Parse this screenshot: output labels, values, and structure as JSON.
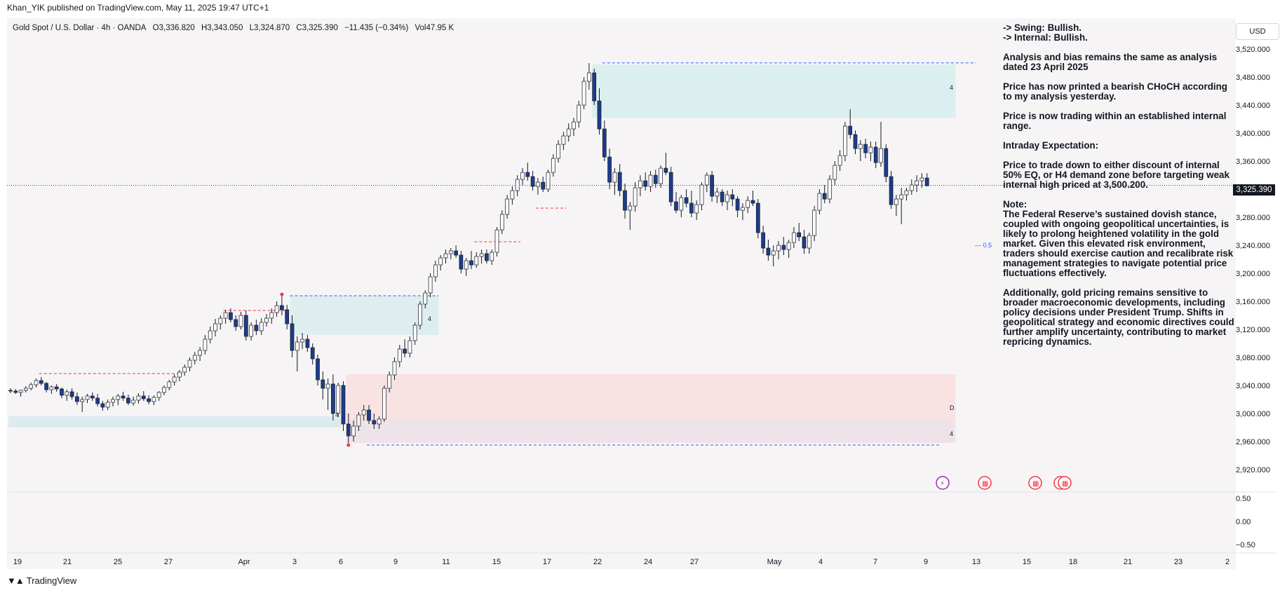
{
  "header": {
    "published": "Khan_YIK published on TradingView.com, May 11, 2025 19:47 UTC+1"
  },
  "ohlc": {
    "symbol": "Gold Spot / U.S. Dollar · 4h · OANDA",
    "open": "O3,336.820",
    "high": "H3,343.050",
    "low": "L3,324.870",
    "close": "C3,325.390",
    "change": "−11.435 (−0.34%)",
    "vol": "Vol47.95 K"
  },
  "currency_button": "USD",
  "last_price": "3,325.390",
  "notes": [
    "-> Swing:  Bullish.\n-> Internal:  Bullish.",
    "Analysis and bias remains the same as analysis dated 23 April 2025",
    "Price has now printed a bearish CHoCH according to my analysis yesterday.",
    "Price is now trading within an established internal range.",
    "Intraday Expectation:",
    "Price to trade down to either discount of internal 50% EQ, or H4 demand zone before targeting weak internal high priced at 3,500.200.",
    "Note:\nThe Federal Reserve’s sustained dovish stance, coupled with ongoing geopolitical uncertainties, is likely to prolong heightened volatility in the gold market. Given this elevated risk environment, traders should exercise caution and recalibrate risk management strategies to navigate potential price fluctuations effectively.",
    "Additionally, gold pricing remains sensitive to broader macroeconomic developments, including policy decisions under President Trump. Shifts in geopolitical strategy and economic directives could further amplify uncertainty, contributing to market repricing dynamics."
  ],
  "zone_labels": {
    "supply_tf": "4",
    "demand_daily": "D",
    "demand_tf": "4",
    "small_tf": "4",
    "eq_label": "— 0.5"
  },
  "footer": {
    "brand": "TradingView"
  },
  "colors": {
    "bull_body": "#ffffff",
    "bear_body": "#1e3c8c",
    "wick": "#131722",
    "supply_zone": "#d6ecee",
    "demand_zone": "#f9dede",
    "ltf_demand": "#d9e9ec"
  },
  "chart_data": {
    "type": "candlestick",
    "timeframe": "4h",
    "x_tick_labels": [
      "19",
      "21",
      "25",
      "27",
      "Apr",
      "3",
      "6",
      "9",
      "11",
      "15",
      "17",
      "22",
      "24",
      "27",
      "May",
      "4",
      "7",
      "9",
      "13",
      "15",
      "18",
      "21",
      "23",
      "2"
    ],
    "y_tick_labels": [
      "3,520.000",
      "3,480.000",
      "3,440.000",
      "3,400.000",
      "3,360.000",
      "3,320.000",
      "3,280.000",
      "3,240.000",
      "3,200.000",
      "3,160.000",
      "3,120.000",
      "3,080.000",
      "3,040.000",
      "3,000.000",
      "2,960.000",
      "2,920.000"
    ],
    "ylim": [
      2900,
      3535
    ],
    "osc_tick_labels": [
      "0.50",
      "0.00",
      "−0.50"
    ],
    "last_price": 3325.39,
    "zones": [
      {
        "name": "supply",
        "from_index": 114,
        "to_index": 185,
        "top": 3498,
        "bottom": 3422
      },
      {
        "name": "demand-daily",
        "from_index": 66,
        "to_index": 185,
        "top": 3056,
        "bottom": 2992
      },
      {
        "name": "demand-4h",
        "from_index": 66,
        "to_index": 185,
        "top": 2992,
        "bottom": 2958
      },
      {
        "name": "ltf-demand",
        "from_index": 0,
        "to_index": 65,
        "top": 2996,
        "bottom": 2980
      },
      {
        "name": "mid-zone",
        "from_index": 55,
        "to_index": 84,
        "top": 3168,
        "bottom": 3112
      }
    ],
    "levels": [
      {
        "price": 3500.2,
        "from_index": 116,
        "to_index": 189,
        "style": "dashed",
        "color": "#2962ff"
      },
      {
        "price": 2955,
        "from_index": 70,
        "to_index": 182,
        "style": "dashed",
        "color": "#2962ff"
      },
      {
        "price": 3168,
        "from_index": 55,
        "to_index": 84,
        "style": "dashed",
        "color": "#2962ff"
      },
      {
        "price": 3057,
        "from_index": 6,
        "to_index": 34,
        "style": "dashed",
        "color": "#f23645"
      },
      {
        "price": 3147,
        "from_index": 42,
        "to_index": 54,
        "style": "dashed",
        "color": "#f23645"
      },
      {
        "price": 3245,
        "from_index": 91,
        "to_index": 100,
        "style": "dashed",
        "color": "#f23645"
      },
      {
        "price": 3293,
        "from_index": 103,
        "to_index": 109,
        "style": "dashed",
        "color": "#f23645"
      }
    ],
    "candles": [
      [
        3033,
        3036,
        3029,
        3032
      ],
      [
        3032,
        3035,
        3028,
        3030
      ],
      [
        3030,
        3034,
        3024,
        3033
      ],
      [
        3033,
        3039,
        3030,
        3036
      ],
      [
        3036,
        3044,
        3033,
        3041
      ],
      [
        3041,
        3050,
        3037,
        3047
      ],
      [
        3047,
        3052,
        3040,
        3043
      ],
      [
        3043,
        3045,
        3030,
        3034
      ],
      [
        3034,
        3040,
        3028,
        3038
      ],
      [
        3038,
        3042,
        3031,
        3035
      ],
      [
        3035,
        3037,
        3022,
        3026
      ],
      [
        3026,
        3034,
        3018,
        3031
      ],
      [
        3031,
        3036,
        3020,
        3024
      ],
      [
        3024,
        3030,
        3012,
        3017
      ],
      [
        3017,
        3024,
        3002,
        3020
      ],
      [
        3020,
        3028,
        3015,
        3025
      ],
      [
        3025,
        3030,
        3018,
        3022
      ],
      [
        3022,
        3028,
        3010,
        3014
      ],
      [
        3014,
        3018,
        3004,
        3009
      ],
      [
        3009,
        3020,
        3005,
        3016
      ],
      [
        3016,
        3024,
        3010,
        3020
      ],
      [
        3020,
        3028,
        3012,
        3025
      ],
      [
        3025,
        3031,
        3018,
        3022
      ],
      [
        3022,
        3027,
        3012,
        3015
      ],
      [
        3015,
        3024,
        3011,
        3019
      ],
      [
        3019,
        3029,
        3014,
        3025
      ],
      [
        3025,
        3032,
        3018,
        3021
      ],
      [
        3021,
        3026,
        3013,
        3017
      ],
      [
        3017,
        3026,
        3012,
        3023
      ],
      [
        3023,
        3032,
        3018,
        3030
      ],
      [
        3030,
        3040,
        3026,
        3037
      ],
      [
        3037,
        3048,
        3033,
        3045
      ],
      [
        3045,
        3056,
        3040,
        3052
      ],
      [
        3052,
        3062,
        3046,
        3059
      ],
      [
        3059,
        3070,
        3054,
        3066
      ],
      [
        3066,
        3080,
        3060,
        3076
      ],
      [
        3076,
        3088,
        3070,
        3083
      ],
      [
        3083,
        3095,
        3075,
        3090
      ],
      [
        3090,
        3112,
        3084,
        3106
      ],
      [
        3106,
        3124,
        3100,
        3118
      ],
      [
        3118,
        3135,
        3110,
        3128
      ],
      [
        3128,
        3140,
        3120,
        3136
      ],
      [
        3136,
        3148,
        3128,
        3144
      ],
      [
        3144,
        3150,
        3130,
        3134
      ],
      [
        3134,
        3140,
        3118,
        3124
      ],
      [
        3124,
        3145,
        3120,
        3140
      ],
      [
        3140,
        3147,
        3104,
        3110
      ],
      [
        3110,
        3130,
        3104,
        3126
      ],
      [
        3126,
        3134,
        3112,
        3118
      ],
      [
        3118,
        3136,
        3112,
        3130
      ],
      [
        3130,
        3142,
        3124,
        3136
      ],
      [
        3136,
        3150,
        3128,
        3144
      ],
      [
        3144,
        3160,
        3138,
        3154
      ],
      [
        3154,
        3170,
        3140,
        3148
      ],
      [
        3148,
        3155,
        3120,
        3128
      ],
      [
        3128,
        3140,
        3080,
        3090
      ],
      [
        3090,
        3110,
        3060,
        3102
      ],
      [
        3102,
        3115,
        3092,
        3106
      ],
      [
        3106,
        3112,
        3088,
        3094
      ],
      [
        3094,
        3100,
        3070,
        3078
      ],
      [
        3078,
        3084,
        3040,
        3048
      ],
      [
        3048,
        3060,
        3020,
        3036
      ],
      [
        3036,
        3050,
        3005,
        3042
      ],
      [
        3042,
        3056,
        2990,
        3000
      ],
      [
        3000,
        3044,
        2995,
        3040
      ],
      [
        3040,
        3046,
        2975,
        2985
      ],
      [
        2985,
        3000,
        2958,
        2968
      ],
      [
        2968,
        2990,
        2960,
        2982
      ],
      [
        2982,
        3002,
        2975,
        2998
      ],
      [
        2998,
        3012,
        2990,
        3005
      ],
      [
        3005,
        3012,
        2985,
        2990
      ],
      [
        2990,
        3000,
        2978,
        2985
      ],
      [
        2985,
        2996,
        2978,
        2992
      ],
      [
        2992,
        3040,
        2988,
        3036
      ],
      [
        3036,
        3060,
        3030,
        3055
      ],
      [
        3055,
        3080,
        3048,
        3074
      ],
      [
        3074,
        3098,
        3066,
        3092
      ],
      [
        3092,
        3106,
        3080,
        3086
      ],
      [
        3086,
        3110,
        3080,
        3104
      ],
      [
        3104,
        3130,
        3098,
        3126
      ],
      [
        3126,
        3160,
        3120,
        3156
      ],
      [
        3156,
        3176,
        3150,
        3172
      ],
      [
        3172,
        3200,
        3166,
        3195
      ],
      [
        3195,
        3218,
        3188,
        3212
      ],
      [
        3212,
        3226,
        3204,
        3222
      ],
      [
        3222,
        3234,
        3214,
        3228
      ],
      [
        3228,
        3236,
        3220,
        3232
      ],
      [
        3232,
        3240,
        3222,
        3226
      ],
      [
        3226,
        3232,
        3200,
        3206
      ],
      [
        3206,
        3222,
        3196,
        3218
      ],
      [
        3218,
        3232,
        3206,
        3212
      ],
      [
        3212,
        3230,
        3208,
        3224
      ],
      [
        3224,
        3234,
        3214,
        3228
      ],
      [
        3228,
        3234,
        3214,
        3218
      ],
      [
        3218,
        3234,
        3212,
        3230
      ],
      [
        3230,
        3266,
        3224,
        3262
      ],
      [
        3262,
        3290,
        3256,
        3284
      ],
      [
        3284,
        3312,
        3278,
        3306
      ],
      [
        3306,
        3324,
        3298,
        3318
      ],
      [
        3318,
        3340,
        3310,
        3334
      ],
      [
        3334,
        3350,
        3326,
        3344
      ],
      [
        3344,
        3358,
        3332,
        3338
      ],
      [
        3338,
        3346,
        3318,
        3324
      ],
      [
        3324,
        3336,
        3312,
        3330
      ],
      [
        3330,
        3338,
        3316,
        3320
      ],
      [
        3320,
        3348,
        3316,
        3344
      ],
      [
        3344,
        3370,
        3338,
        3364
      ],
      [
        3364,
        3390,
        3358,
        3384
      ],
      [
        3384,
        3402,
        3376,
        3396
      ],
      [
        3396,
        3414,
        3388,
        3406
      ],
      [
        3406,
        3422,
        3396,
        3416
      ],
      [
        3416,
        3446,
        3408,
        3440
      ],
      [
        3440,
        3480,
        3434,
        3474
      ],
      [
        3474,
        3500,
        3462,
        3486
      ],
      [
        3486,
        3492,
        3440,
        3446
      ],
      [
        3446,
        3464,
        3398,
        3406
      ],
      [
        3406,
        3418,
        3360,
        3366
      ],
      [
        3366,
        3378,
        3320,
        3330
      ],
      [
        3330,
        3350,
        3312,
        3344
      ],
      [
        3344,
        3356,
        3310,
        3318
      ],
      [
        3318,
        3328,
        3278,
        3290
      ],
      [
        3290,
        3302,
        3262,
        3296
      ],
      [
        3296,
        3330,
        3288,
        3322
      ],
      [
        3322,
        3340,
        3310,
        3332
      ],
      [
        3332,
        3344,
        3318,
        3324
      ],
      [
        3324,
        3346,
        3316,
        3340
      ],
      [
        3340,
        3348,
        3322,
        3328
      ],
      [
        3328,
        3354,
        3322,
        3350
      ],
      [
        3350,
        3372,
        3340,
        3344
      ],
      [
        3344,
        3352,
        3296,
        3302
      ],
      [
        3302,
        3316,
        3286,
        3290
      ],
      [
        3290,
        3312,
        3280,
        3308
      ],
      [
        3308,
        3320,
        3294,
        3300
      ],
      [
        3300,
        3318,
        3280,
        3286
      ],
      [
        3286,
        3304,
        3276,
        3298
      ],
      [
        3298,
        3330,
        3290,
        3326
      ],
      [
        3326,
        3344,
        3316,
        3340
      ],
      [
        3340,
        3346,
        3302,
        3310
      ],
      [
        3310,
        3322,
        3300,
        3316
      ],
      [
        3316,
        3320,
        3296,
        3302
      ],
      [
        3302,
        3318,
        3290,
        3312
      ],
      [
        3312,
        3320,
        3296,
        3306
      ],
      [
        3306,
        3310,
        3280,
        3290
      ],
      [
        3290,
        3300,
        3276,
        3294
      ],
      [
        3294,
        3310,
        3286,
        3304
      ],
      [
        3304,
        3318,
        3296,
        3300
      ],
      [
        3300,
        3306,
        3250,
        3258
      ],
      [
        3258,
        3268,
        3228,
        3236
      ],
      [
        3236,
        3248,
        3218,
        3226
      ],
      [
        3226,
        3240,
        3210,
        3232
      ],
      [
        3232,
        3246,
        3220,
        3240
      ],
      [
        3240,
        3252,
        3226,
        3234
      ],
      [
        3234,
        3248,
        3222,
        3244
      ],
      [
        3244,
        3266,
        3236,
        3258
      ],
      [
        3258,
        3272,
        3246,
        3252
      ],
      [
        3252,
        3262,
        3228,
        3236
      ],
      [
        3236,
        3258,
        3228,
        3254
      ],
      [
        3254,
        3296,
        3246,
        3290
      ],
      [
        3290,
        3320,
        3284,
        3314
      ],
      [
        3314,
        3326,
        3300,
        3306
      ],
      [
        3306,
        3340,
        3300,
        3334
      ],
      [
        3334,
        3360,
        3326,
        3354
      ],
      [
        3354,
        3376,
        3346,
        3368
      ],
      [
        3368,
        3416,
        3360,
        3410
      ],
      [
        3410,
        3434,
        3392,
        3398
      ],
      [
        3398,
        3404,
        3370,
        3378
      ],
      [
        3378,
        3390,
        3360,
        3384
      ],
      [
        3384,
        3392,
        3364,
        3372
      ],
      [
        3372,
        3388,
        3360,
        3380
      ],
      [
        3380,
        3388,
        3350,
        3358
      ],
      [
        3358,
        3416,
        3352,
        3378
      ],
      [
        3378,
        3384,
        3330,
        3338
      ],
      [
        3338,
        3346,
        3292,
        3298
      ],
      [
        3298,
        3312,
        3282,
        3306
      ],
      [
        3306,
        3322,
        3270,
        3312
      ],
      [
        3312,
        3322,
        3304,
        3318
      ],
      [
        3318,
        3334,
        3312,
        3326
      ],
      [
        3326,
        3340,
        3316,
        3332
      ],
      [
        3332,
        3343,
        3322,
        3336
      ],
      [
        3336,
        3343,
        3324,
        3325
      ]
    ]
  }
}
